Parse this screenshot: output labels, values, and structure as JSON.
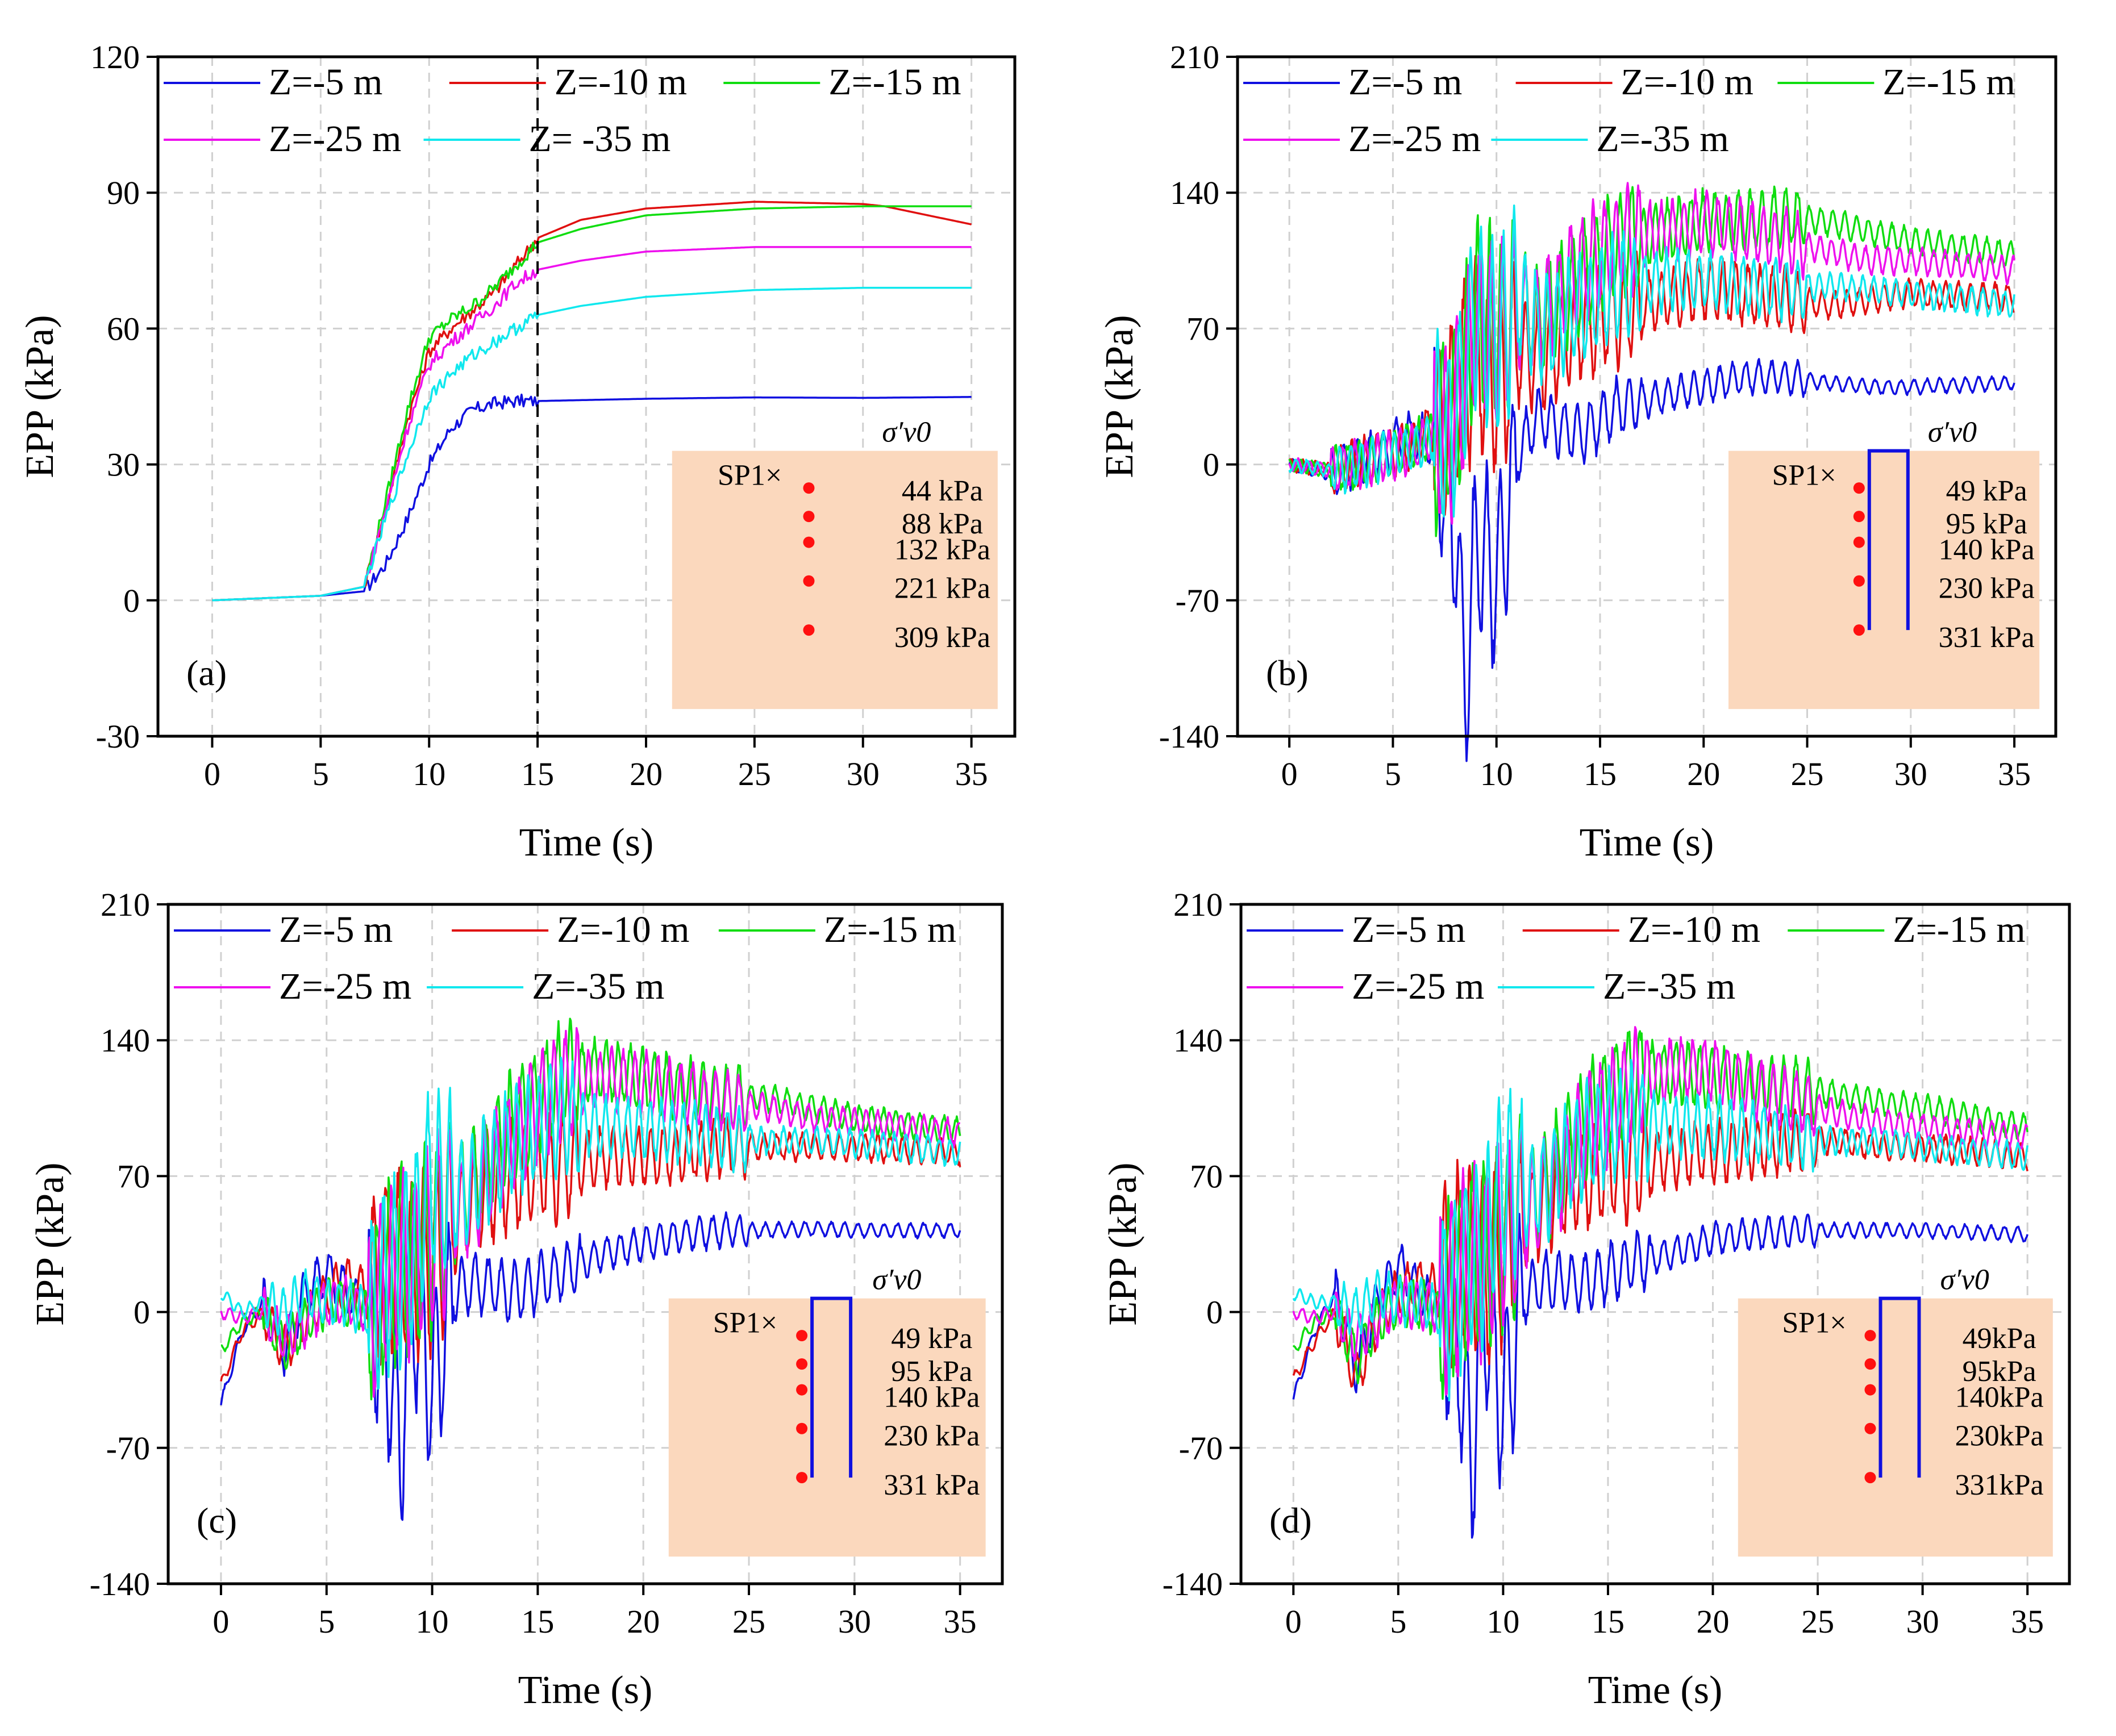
{
  "chart_data": [
    {
      "type": "line",
      "panel_label": "(a)",
      "xlabel": "Time (s)",
      "ylabel": "EPP (kPa)",
      "xlim": [
        -2.5,
        37
      ],
      "ylim": [
        -30,
        120
      ],
      "xticks": [
        0,
        5,
        10,
        15,
        20,
        25,
        30,
        35
      ],
      "yticks": [
        -30,
        0,
        30,
        60,
        90,
        120
      ],
      "grid": true,
      "vline_x": 15,
      "legend": [
        "Z=-5 m",
        "Z=-10 m",
        "Z=-15 m",
        "Z=-25 m",
        "Z= -35 m"
      ],
      "inset": {
        "header": "σ′v0",
        "marker_label": "SP1×",
        "values": [
          "44 kPa",
          "88 kPa",
          "132 kPa",
          "221 kPa",
          "309 kPa"
        ],
        "has_pile": false
      },
      "mode": "monotonic",
      "series": [
        {
          "name": "Z=-5 m",
          "color": "#1010e0",
          "final": 45,
          "rise_start": 7.2,
          "rise_mid": 9.5,
          "rise_rate": 1.0,
          "noise": 1.0,
          "x": [
            0,
            5,
            7,
            8,
            9,
            10,
            11,
            12,
            13,
            14,
            15,
            20,
            25,
            30,
            35
          ],
          "y": [
            0,
            1,
            2,
            8,
            18,
            30,
            38,
            42,
            43.5,
            44,
            44,
            44.5,
            44.8,
            44.7,
            44.9
          ]
        },
        {
          "name": "Z=-10 m",
          "color": "#e01010",
          "final": 88,
          "x": [
            0,
            5,
            7,
            8,
            9,
            10,
            11,
            12,
            13,
            14,
            15,
            17,
            20,
            25,
            30,
            31,
            35
          ],
          "y": [
            0,
            1,
            3,
            20,
            40,
            55,
            60,
            64,
            68,
            74,
            80,
            84,
            86.5,
            88,
            87.5,
            87,
            83
          ]
        },
        {
          "name": "Z=-15 m",
          "color": "#10dd10",
          "final": 87,
          "x": [
            0,
            5,
            7,
            8,
            9,
            10,
            11,
            12,
            13,
            14,
            15,
            17,
            20,
            25,
            30,
            35
          ],
          "y": [
            0,
            1,
            3,
            22,
            42,
            58,
            62,
            65,
            69,
            74,
            79,
            82,
            85,
            86.5,
            87,
            87
          ]
        },
        {
          "name": "Z=-25 m",
          "color": "#ee10ee",
          "final": 78,
          "x": [
            0,
            5,
            7,
            8,
            9,
            10,
            11,
            12,
            13,
            14,
            15,
            17,
            20,
            25,
            30,
            35
          ],
          "y": [
            0,
            1,
            3,
            20,
            38,
            52,
            57,
            61,
            65,
            70,
            73,
            75,
            77,
            78,
            78,
            78
          ]
        },
        {
          "name": "Z= -35 m",
          "color": "#10e8ee",
          "final": 69,
          "x": [
            0,
            5,
            7,
            8,
            9,
            10,
            11,
            12,
            13,
            14,
            15,
            17,
            20,
            25,
            30,
            35
          ],
          "y": [
            0,
            1,
            3,
            18,
            32,
            45,
            50,
            54,
            57,
            60,
            63,
            65,
            67,
            68.5,
            69,
            69
          ]
        }
      ]
    },
    {
      "type": "line",
      "panel_label": "(b)",
      "xlabel": "Time (s)",
      "ylabel": "EPP (kPa)",
      "xlim": [
        -2.5,
        37
      ],
      "ylim": [
        -140,
        210
      ],
      "xticks": [
        0,
        5,
        10,
        15,
        20,
        25,
        30,
        35
      ],
      "yticks": [
        -140,
        -70,
        0,
        70,
        140,
        210
      ],
      "grid": true,
      "legend": [
        "Z=-5 m",
        "Z=-10 m",
        "Z=-15 m",
        "Z=-25 m",
        "Z=-35 m"
      ],
      "inset": {
        "header": "σ′v0",
        "marker_label": "SP1×",
        "values": [
          "49 kPa",
          "95 kPa",
          "140 kPa",
          "230 kPa",
          "331 kPa"
        ],
        "has_pile": true
      },
      "mode": "oscillatory",
      "series": [
        {
          "name": "Z=-5 m",
          "color": "#1010e0",
          "x": [
            0,
            2,
            4,
            6,
            7,
            8,
            8.5,
            9,
            10,
            11,
            12,
            14,
            16,
            18,
            20,
            22,
            24,
            26,
            28,
            30,
            35
          ],
          "y": [
            0,
            -5,
            5,
            15,
            10,
            -30,
            -115,
            -40,
            -60,
            5,
            25,
            15,
            30,
            35,
            40,
            45,
            45,
            42,
            40,
            40,
            42
          ]
        },
        {
          "name": "Z=-10 m",
          "color": "#e01010",
          "x": [
            0,
            2,
            4,
            6,
            7,
            8,
            9,
            10,
            11,
            12,
            14,
            16,
            18,
            20,
            22,
            24,
            26,
            28,
            30,
            35
          ],
          "y": [
            0,
            -3,
            3,
            10,
            20,
            30,
            60,
            40,
            60,
            55,
            70,
            80,
            85,
            90,
            88,
            85,
            82,
            85,
            88,
            86
          ]
        },
        {
          "name": "Z=-15 m",
          "color": "#10dd10",
          "x": [
            0,
            2,
            4,
            6,
            7,
            8,
            9,
            10,
            11,
            12,
            14,
            16,
            18,
            20,
            22,
            24,
            26,
            28,
            30,
            35
          ],
          "y": [
            0,
            -3,
            2,
            10,
            15,
            20,
            80,
            70,
            80,
            75,
            95,
            115,
            120,
            125,
            125,
            128,
            125,
            120,
            115,
            108
          ]
        },
        {
          "name": "Z=-25 m",
          "color": "#ee10ee",
          "x": [
            0,
            2,
            4,
            6,
            7,
            8,
            9,
            10,
            11,
            12,
            14,
            16,
            18,
            20,
            22,
            24,
            26,
            28,
            30,
            35
          ],
          "y": [
            0,
            -3,
            2,
            8,
            15,
            20,
            75,
            65,
            78,
            75,
            100,
            115,
            120,
            125,
            120,
            115,
            110,
            105,
            105,
            100
          ]
        },
        {
          "name": "Z=-35 m",
          "color": "#10e8ee",
          "x": [
            0,
            2,
            4,
            6,
            7,
            8,
            9,
            10,
            11,
            12,
            14,
            16,
            18,
            20,
            22,
            24,
            26,
            28,
            30,
            35
          ],
          "y": [
            0,
            -3,
            2,
            8,
            15,
            20,
            80,
            60,
            85,
            70,
            80,
            90,
            95,
            95,
            92,
            90,
            92,
            90,
            88,
            82
          ]
        }
      ]
    },
    {
      "type": "line",
      "panel_label": "(c)",
      "xlabel": "Time (s)",
      "ylabel": "EPP (kPa)",
      "xlim": [
        -2.5,
        37
      ],
      "ylim": [
        -140,
        210
      ],
      "xticks": [
        0,
        5,
        10,
        15,
        20,
        25,
        30,
        35
      ],
      "yticks": [
        -140,
        -70,
        0,
        70,
        140,
        210
      ],
      "grid": true,
      "legend": [
        "Z=-5 m",
        "Z=-10 m",
        "Z=-15 m",
        "Z=-25 m",
        "Z=-35 m"
      ],
      "inset": {
        "header": "σ′v0",
        "marker_label": "SP1×",
        "values": [
          "49 kPa",
          "95 kPa",
          "140 kPa",
          "230 kPa",
          "331 kPa"
        ],
        "has_pile": true
      },
      "mode": "oscillatory",
      "series": [
        {
          "name": "Z=-5 m",
          "color": "#1010e0",
          "x": [
            0,
            1,
            2,
            3,
            4,
            5,
            6,
            7,
            8,
            8.5,
            9,
            10,
            11,
            12,
            14,
            16,
            18,
            20,
            22,
            24,
            26,
            28,
            30,
            35
          ],
          "y": [
            -48,
            -10,
            5,
            -20,
            10,
            20,
            10,
            0,
            -30,
            -70,
            10,
            -40,
            10,
            15,
            10,
            20,
            30,
            35,
            40,
            42,
            42,
            43,
            42,
            42
          ]
        },
        {
          "name": "Z=-10 m",
          "color": "#e01010",
          "x": [
            0,
            1,
            2,
            3,
            4,
            5,
            6,
            7,
            8,
            9,
            10,
            11,
            12,
            14,
            16,
            18,
            20,
            22,
            24,
            26,
            28,
            30,
            35
          ],
          "y": [
            -38,
            -10,
            0,
            -20,
            -5,
            10,
            15,
            10,
            30,
            20,
            30,
            45,
            60,
            70,
            75,
            80,
            80,
            82,
            85,
            85,
            85,
            85,
            82
          ]
        },
        {
          "name": "Z=-15 m",
          "color": "#10dd10",
          "x": [
            0,
            1,
            2,
            3,
            4,
            5,
            6,
            7,
            8,
            9,
            10,
            11,
            12,
            14,
            16,
            18,
            20,
            22,
            24,
            26,
            28,
            30,
            35
          ],
          "y": [
            -20,
            -5,
            0,
            -20,
            -5,
            5,
            5,
            0,
            20,
            30,
            40,
            55,
            65,
            100,
            120,
            125,
            120,
            115,
            112,
            110,
            105,
            100,
            93
          ]
        },
        {
          "name": "Z=-25 m",
          "color": "#ee10ee",
          "x": [
            0,
            1,
            2,
            3,
            4,
            5,
            6,
            7,
            8,
            9,
            10,
            11,
            12,
            14,
            16,
            18,
            20,
            22,
            24,
            26,
            28,
            30,
            35
          ],
          "y": [
            0,
            -3,
            0,
            -15,
            -5,
            5,
            5,
            0,
            20,
            25,
            40,
            50,
            60,
            95,
            115,
            120,
            118,
            112,
            108,
            105,
            100,
            98,
            92
          ]
        },
        {
          "name": "Z=-35 m",
          "color": "#10e8ee",
          "x": [
            0,
            1,
            2,
            3,
            4,
            5,
            6,
            7,
            8,
            9,
            10,
            11,
            12,
            14,
            16,
            18,
            20,
            22,
            24,
            26,
            28,
            30,
            35
          ],
          "y": [
            10,
            0,
            5,
            0,
            10,
            5,
            5,
            0,
            20,
            30,
            70,
            60,
            65,
            90,
            100,
            95,
            95,
            92,
            90,
            88,
            88,
            87,
            82
          ]
        }
      ]
    },
    {
      "type": "line",
      "panel_label": "(d)",
      "xlabel": "Time (s)",
      "ylabel": "EPP (kPa)",
      "xlim": [
        -2.5,
        37
      ],
      "ylim": [
        -140,
        210
      ],
      "xticks": [
        0,
        5,
        10,
        15,
        20,
        25,
        30,
        35
      ],
      "yticks": [
        -140,
        -70,
        0,
        70,
        140,
        210
      ],
      "grid": true,
      "legend": [
        "Z=-5 m",
        "Z=-10 m",
        "Z=-15 m",
        "Z=-25 m",
        "Z=-35 m"
      ],
      "inset": {
        "header": "σ′v0",
        "marker_label": "SP1×",
        "values": [
          "49kPa",
          "95kPa",
          "140kPa",
          "230kPa",
          "331kPa"
        ],
        "has_pile": true
      },
      "mode": "oscillatory",
      "series": [
        {
          "name": "Z=-5 m",
          "color": "#1010e0",
          "x": [
            0,
            1,
            2,
            3,
            4,
            5,
            6,
            7,
            8,
            8.5,
            9,
            10,
            11,
            12,
            14,
            16,
            18,
            20,
            22,
            24,
            26,
            28,
            30,
            35
          ],
          "y": [
            -45,
            -10,
            10,
            -30,
            5,
            25,
            10,
            0,
            -30,
            -80,
            10,
            -50,
            10,
            15,
            15,
            25,
            30,
            38,
            40,
            42,
            42,
            42,
            42,
            40
          ]
        },
        {
          "name": "Z=-10 m",
          "color": "#e01010",
          "x": [
            0,
            1,
            2,
            3,
            4,
            5,
            6,
            7,
            8,
            9,
            10,
            11,
            12,
            14,
            16,
            18,
            20,
            22,
            24,
            26,
            28,
            30,
            35
          ],
          "y": [
            -35,
            -15,
            0,
            -35,
            -5,
            10,
            15,
            10,
            30,
            20,
            30,
            45,
            60,
            70,
            75,
            80,
            82,
            85,
            88,
            88,
            85,
            85,
            80
          ]
        },
        {
          "name": "Z=-15 m",
          "color": "#10dd10",
          "x": [
            0,
            1,
            2,
            3,
            4,
            5,
            6,
            7,
            8,
            9,
            10,
            11,
            12,
            14,
            16,
            18,
            20,
            22,
            24,
            26,
            28,
            30,
            35
          ],
          "y": [
            -20,
            -5,
            0,
            -25,
            -5,
            5,
            5,
            0,
            20,
            30,
            40,
            55,
            65,
            100,
            120,
            125,
            120,
            118,
            115,
            112,
            108,
            105,
            95
          ]
        },
        {
          "name": "Z=-25 m",
          "color": "#ee10ee",
          "x": [
            0,
            1,
            2,
            3,
            4,
            5,
            6,
            7,
            8,
            9,
            10,
            11,
            12,
            14,
            16,
            18,
            20,
            22,
            24,
            26,
            28,
            30,
            35
          ],
          "y": [
            0,
            -3,
            0,
            -15,
            -5,
            5,
            5,
            0,
            20,
            25,
            40,
            50,
            60,
            95,
            115,
            125,
            125,
            115,
            108,
            102,
            98,
            95,
            90
          ]
        },
        {
          "name": "Z=-35 m",
          "color": "#10e8ee",
          "x": [
            0,
            1,
            2,
            3,
            4,
            5,
            6,
            7,
            8,
            9,
            10,
            11,
            12,
            14,
            16,
            18,
            20,
            22,
            24,
            26,
            28,
            30,
            35
          ],
          "y": [
            10,
            5,
            5,
            0,
            10,
            5,
            5,
            0,
            20,
            30,
            70,
            60,
            65,
            90,
            100,
            95,
            95,
            92,
            90,
            88,
            88,
            85,
            80
          ]
        }
      ]
    }
  ]
}
